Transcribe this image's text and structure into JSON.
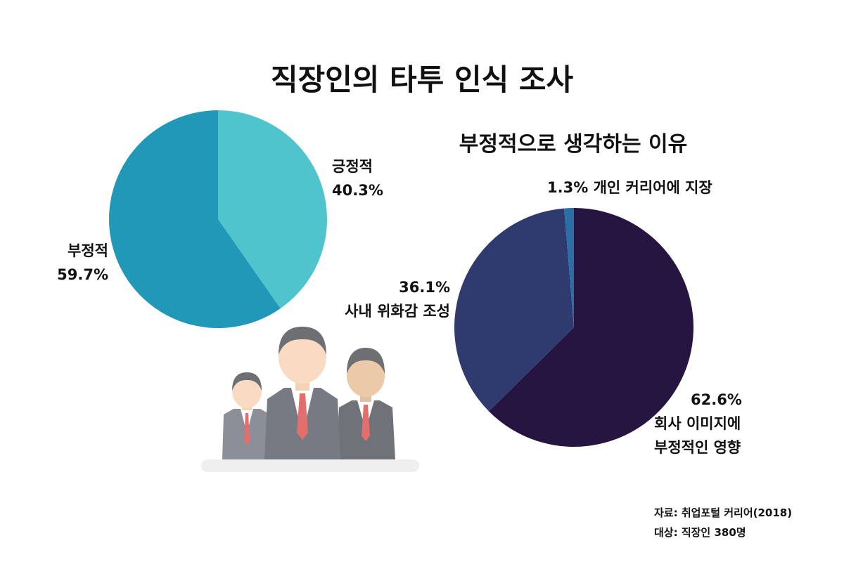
{
  "title": "직장인의 타투 인식 조사",
  "colors": {
    "positive": "#4fc4cd",
    "negative": "#2298b8",
    "reason_image": "#261541",
    "reason_harmony": "#2f3a6e",
    "reason_career": "#2b6ea6"
  },
  "chart_data": [
    {
      "type": "pie",
      "title": "",
      "slices": [
        {
          "label": "긍정적",
          "value": 40.3,
          "value_text": "40.3%"
        },
        {
          "label": "부정적",
          "value": 59.7,
          "value_text": "59.7%"
        }
      ]
    },
    {
      "type": "pie",
      "title": "부정적으로 생각하는 이유",
      "slices": [
        {
          "label_lines": [
            "회사 이미지에",
            "부정적인 영향"
          ],
          "value": 62.6,
          "value_text": "62.6%"
        },
        {
          "label_lines": [
            "사내 위화감 조성"
          ],
          "value": 36.1,
          "value_text": "36.1%"
        },
        {
          "label": "개인 커리어에 지장",
          "value": 1.3,
          "value_text": "1.3%"
        }
      ]
    }
  ],
  "illustration": {
    "icon": "office-workers-icon"
  },
  "source": {
    "line1": "자료: 취업포털 커리어(2018)",
    "line2": "대상: 직장인 380명"
  }
}
